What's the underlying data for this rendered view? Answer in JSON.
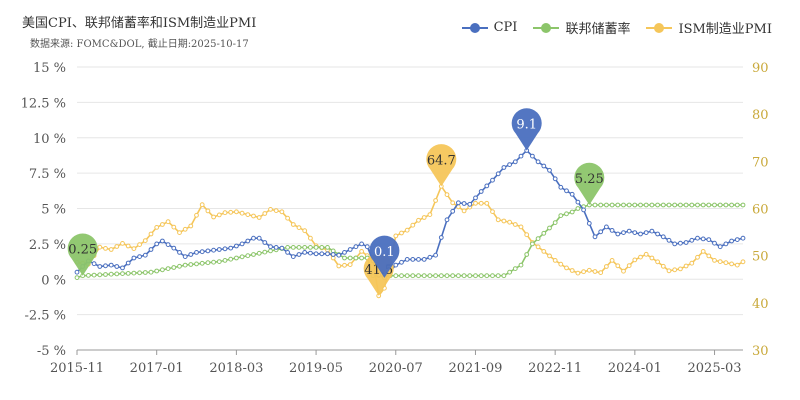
{
  "chart_data": {
    "type": "line",
    "title": "美国CPI、联邦储蓄率和ISM制造业PMI",
    "subtitle": "数据来源: FOMC&DOL, 截止日期:2025-10-17",
    "x_tick_labels": [
      "2015-11",
      "2017-01",
      "2018-03",
      "2019-05",
      "2020-07",
      "2021-09",
      "2022-11",
      "2024-01",
      "2025-03"
    ],
    "y_left_ticks": [
      "15 %",
      "12.5 %",
      "10 %",
      "7.5 %",
      "5 %",
      "2.5 %",
      "0 %",
      "-2.5 %",
      "-5 %"
    ],
    "y_left_range": [
      -5,
      15
    ],
    "y_right_ticks": [
      "90",
      "80",
      "70",
      "60",
      "50",
      "40",
      "30"
    ],
    "y_right_range": [
      30,
      90
    ],
    "x_range": [
      "2015-11",
      "2025-08"
    ],
    "grid": true,
    "legend_position": "top-right",
    "series": [
      {
        "name": "CPI",
        "axis": "left",
        "color": "#4A6FBF",
        "points": [
          [
            "2015-11",
            0.5
          ],
          [
            "2016-01",
            1.3
          ],
          [
            "2016-03",
            0.9
          ],
          [
            "2016-05",
            1.0
          ],
          [
            "2016-07",
            0.8
          ],
          [
            "2016-09",
            1.5
          ],
          [
            "2016-11",
            1.7
          ],
          [
            "2017-01",
            2.5
          ],
          [
            "2017-02",
            2.7
          ],
          [
            "2017-04",
            2.2
          ],
          [
            "2017-06",
            1.6
          ],
          [
            "2017-08",
            1.9
          ],
          [
            "2017-10",
            2.0
          ],
          [
            "2017-12",
            2.1
          ],
          [
            "2018-02",
            2.2
          ],
          [
            "2018-04",
            2.5
          ],
          [
            "2018-06",
            2.9
          ],
          [
            "2018-07",
            2.9
          ],
          [
            "2018-09",
            2.3
          ],
          [
            "2018-11",
            2.2
          ],
          [
            "2019-01",
            1.6
          ],
          [
            "2019-03",
            1.9
          ],
          [
            "2019-05",
            1.8
          ],
          [
            "2019-07",
            1.8
          ],
          [
            "2019-09",
            1.7
          ],
          [
            "2019-11",
            2.1
          ],
          [
            "2020-01",
            2.5
          ],
          [
            "2020-02",
            2.3
          ],
          [
            "2020-04",
            0.3
          ],
          [
            "2020-05",
            0.1
          ],
          [
            "2020-07",
            1.0
          ],
          [
            "2020-09",
            1.4
          ],
          [
            "2020-12",
            1.4
          ],
          [
            "2021-02",
            1.7
          ],
          [
            "2021-04",
            4.2
          ],
          [
            "2021-06",
            5.4
          ],
          [
            "2021-08",
            5.3
          ],
          [
            "2021-10",
            6.2
          ],
          [
            "2021-12",
            7.0
          ],
          [
            "2022-02",
            7.9
          ],
          [
            "2022-04",
            8.3
          ],
          [
            "2022-06",
            9.1
          ],
          [
            "2022-08",
            8.3
          ],
          [
            "2022-10",
            7.7
          ],
          [
            "2022-12",
            6.5
          ],
          [
            "2023-02",
            6.0
          ],
          [
            "2023-04",
            4.9
          ],
          [
            "2023-06",
            3.0
          ],
          [
            "2023-08",
            3.7
          ],
          [
            "2023-10",
            3.2
          ],
          [
            "2023-12",
            3.4
          ],
          [
            "2024-02",
            3.2
          ],
          [
            "2024-04",
            3.4
          ],
          [
            "2024-06",
            3.0
          ],
          [
            "2024-08",
            2.5
          ],
          [
            "2024-10",
            2.6
          ],
          [
            "2024-12",
            2.9
          ],
          [
            "2025-02",
            2.8
          ],
          [
            "2025-04",
            2.3
          ],
          [
            "2025-06",
            2.7
          ],
          [
            "2025-08",
            2.9
          ]
        ],
        "marker": {
          "x": "2022-06",
          "value": "9.1"
        }
      },
      {
        "name": "联邦储蓄率",
        "axis": "left",
        "color": "#8CC56A",
        "points": [
          [
            "2015-11",
            0.12
          ],
          [
            "2015-12",
            0.25
          ],
          [
            "2016-12",
            0.5
          ],
          [
            "2017-03",
            0.75
          ],
          [
            "2017-06",
            1.0
          ],
          [
            "2017-12",
            1.25
          ],
          [
            "2018-03",
            1.5
          ],
          [
            "2018-06",
            1.75
          ],
          [
            "2018-09",
            2.0
          ],
          [
            "2018-12",
            2.25
          ],
          [
            "2019-07",
            2.25
          ],
          [
            "2019-08",
            2.0
          ],
          [
            "2019-09",
            1.75
          ],
          [
            "2019-10",
            1.5
          ],
          [
            "2020-02",
            1.5
          ],
          [
            "2020-03",
            0.25
          ],
          [
            "2022-02",
            0.25
          ],
          [
            "2022-03",
            0.5
          ],
          [
            "2022-05",
            1.0
          ],
          [
            "2022-06",
            1.75
          ],
          [
            "2022-07",
            2.5
          ],
          [
            "2022-09",
            3.25
          ],
          [
            "2022-11",
            4.0
          ],
          [
            "2022-12",
            4.5
          ],
          [
            "2023-02",
            4.75
          ],
          [
            "2023-03",
            5.0
          ],
          [
            "2023-05",
            5.25
          ],
          [
            "2025-08",
            5.25
          ]
        ],
        "marker": {
          "x": "2015-12",
          "value": "0.25"
        },
        "marker2": {
          "x": "2023-05",
          "value": "5.25"
        }
      },
      {
        "name": "ISM制造业PMI",
        "axis": "right",
        "color": "#F5C65A",
        "points": [
          [
            "2015-11",
            48.6
          ],
          [
            "2016-01",
            48.2
          ],
          [
            "2016-03",
            51.8
          ],
          [
            "2016-05",
            51.3
          ],
          [
            "2016-07",
            52.6
          ],
          [
            "2016-09",
            51.5
          ],
          [
            "2016-11",
            53.2
          ],
          [
            "2017-01",
            56.0
          ],
          [
            "2017-03",
            57.2
          ],
          [
            "2017-05",
            54.9
          ],
          [
            "2017-07",
            56.3
          ],
          [
            "2017-09",
            60.8
          ],
          [
            "2017-11",
            58.2
          ],
          [
            "2018-01",
            59.1
          ],
          [
            "2018-03",
            59.3
          ],
          [
            "2018-05",
            58.7
          ],
          [
            "2018-07",
            58.1
          ],
          [
            "2018-09",
            59.8
          ],
          [
            "2018-11",
            59.3
          ],
          [
            "2019-01",
            56.6
          ],
          [
            "2019-03",
            55.3
          ],
          [
            "2019-05",
            52.1
          ],
          [
            "2019-07",
            51.2
          ],
          [
            "2019-09",
            47.8
          ],
          [
            "2019-11",
            48.1
          ],
          [
            "2020-01",
            50.9
          ],
          [
            "2020-03",
            49.1
          ],
          [
            "2020-04",
            41.5
          ],
          [
            "2020-05",
            43.1
          ],
          [
            "2020-07",
            54.2
          ],
          [
            "2020-09",
            55.4
          ],
          [
            "2020-11",
            57.5
          ],
          [
            "2021-01",
            58.7
          ],
          [
            "2021-03",
            64.7
          ],
          [
            "2021-05",
            61.2
          ],
          [
            "2021-07",
            59.5
          ],
          [
            "2021-09",
            61.1
          ],
          [
            "2021-11",
            61.1
          ],
          [
            "2022-01",
            57.6
          ],
          [
            "2022-03",
            57.1
          ],
          [
            "2022-05",
            56.1
          ],
          [
            "2022-07",
            52.8
          ],
          [
            "2022-09",
            50.9
          ],
          [
            "2022-11",
            49.0
          ],
          [
            "2023-01",
            47.4
          ],
          [
            "2023-03",
            46.3
          ],
          [
            "2023-05",
            46.9
          ],
          [
            "2023-07",
            46.4
          ],
          [
            "2023-09",
            49.0
          ],
          [
            "2023-11",
            46.7
          ],
          [
            "2024-01",
            49.1
          ],
          [
            "2024-03",
            50.3
          ],
          [
            "2024-05",
            48.7
          ],
          [
            "2024-07",
            46.8
          ],
          [
            "2024-09",
            47.2
          ],
          [
            "2024-11",
            48.4
          ],
          [
            "2025-01",
            50.9
          ],
          [
            "2025-03",
            49.0
          ],
          [
            "2025-05",
            48.5
          ],
          [
            "2025-07",
            48.0
          ],
          [
            "2025-08",
            48.7
          ]
        ],
        "marker": {
          "x": "2021-03",
          "value": "64.7"
        },
        "marker2": {
          "x": "2020-04",
          "value": "41.5"
        }
      }
    ],
    "extra_markers": [
      {
        "series": "CPI",
        "x": "2020-05",
        "value": "0.1"
      }
    ]
  }
}
